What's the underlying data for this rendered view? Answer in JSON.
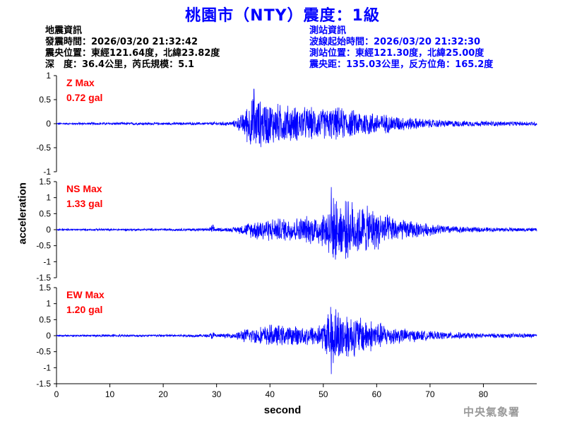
{
  "title": "桃園市（NTY）震度：1級",
  "quake_info": {
    "heading": "地震資訊",
    "origin_time": "發震時間：2026/03/20 21:32:42",
    "epicenter": "震央位置：東經121.64度，北緯23.82度",
    "depth_magnitude": "深　度：36.4公里，芮氏規模：5.1"
  },
  "station_info": {
    "heading": "測站資訊",
    "wave_start": "波線起始時間：2026/03/20 21:32:30",
    "station_location": "測站位置：東經121.30度，北緯25.00度",
    "distance_azimuth": "震央距：135.03公里，反方位角：165.2度"
  },
  "agency": "中央氣象署",
  "colors": {
    "trace": "#0000ff",
    "max_label": "#ff0000",
    "title": "#0000ff",
    "station_info": "#0000ff",
    "agency": "#999999"
  },
  "chart_data": {
    "type": "line",
    "xlabel": "second",
    "ylabel": "acceleration",
    "xlim": [
      0,
      90
    ],
    "xticks": [
      0,
      10,
      20,
      30,
      40,
      50,
      60,
      70,
      80
    ],
    "grid": false,
    "panels": [
      {
        "component": "Z",
        "label": "Z Max",
        "max_text": "0.72 gal",
        "max_value": 0.72,
        "ylim": [
          -1,
          1
        ],
        "yticks": [
          1,
          0.5,
          0,
          -0.5,
          -1
        ],
        "ytick_labels": [
          "1",
          "0.5",
          "0",
          "-0.5",
          "-1"
        ],
        "envelope": {
          "t": [
            0,
            5,
            10,
            20,
            28.5,
            29.5,
            33,
            35,
            36,
            37,
            38,
            40,
            42,
            45,
            50,
            53,
            55,
            58,
            60,
            65,
            70,
            75,
            80,
            85,
            90
          ],
          "amp": [
            0.02,
            0.025,
            0.03,
            0.03,
            0.03,
            0.04,
            0.05,
            0.25,
            0.5,
            0.62,
            0.55,
            0.5,
            0.45,
            0.4,
            0.35,
            0.38,
            0.32,
            0.3,
            0.25,
            0.16,
            0.1,
            0.07,
            0.06,
            0.05,
            0.05
          ]
        }
      },
      {
        "component": "NS",
        "label": "NS Max",
        "max_text": "1.33 gal",
        "max_value": 1.33,
        "ylim": [
          -1.5,
          1.5
        ],
        "yticks": [
          1.5,
          1,
          0.5,
          0,
          -0.5,
          -1,
          -1.5
        ],
        "ytick_labels": [
          "1.5",
          "1",
          "0.5",
          "0",
          "-0.5",
          "-1",
          "-1.5"
        ],
        "envelope": {
          "t": [
            0,
            10,
            20,
            28.5,
            29.2,
            30,
            33,
            35,
            38,
            42,
            45,
            48,
            50,
            51.5,
            53,
            55,
            57,
            60,
            62,
            65,
            70,
            75,
            80,
            90
          ],
          "amp": [
            0.03,
            0.035,
            0.04,
            0.05,
            0.18,
            0.06,
            0.07,
            0.18,
            0.38,
            0.4,
            0.42,
            0.5,
            0.6,
            1.1,
            0.95,
            1.0,
            0.85,
            0.7,
            0.5,
            0.35,
            0.2,
            0.12,
            0.08,
            0.06
          ]
        }
      },
      {
        "component": "EW",
        "label": "EW Max",
        "max_text": "1.20 gal",
        "max_value": 1.2,
        "ylim": [
          -1.5,
          1.5
        ],
        "yticks": [
          1.5,
          1,
          0.5,
          0,
          -0.5,
          -1,
          -1.5
        ],
        "ytick_labels": [
          "1.5",
          "1",
          "0.5",
          "0",
          "-0.5",
          "-1",
          "-1.5"
        ],
        "envelope": {
          "t": [
            0,
            10,
            20,
            28.5,
            29.2,
            30,
            33,
            35,
            38,
            40,
            44,
            48,
            50,
            51.5,
            53,
            55,
            57,
            60,
            62,
            65,
            70,
            75,
            80,
            88,
            90
          ],
          "amp": [
            0.03,
            0.04,
            0.04,
            0.05,
            0.15,
            0.06,
            0.08,
            0.22,
            0.3,
            0.38,
            0.32,
            0.35,
            0.45,
            1.05,
            0.95,
            0.75,
            0.65,
            0.5,
            0.35,
            0.25,
            0.15,
            0.12,
            0.08,
            0.08,
            0.06
          ]
        }
      }
    ]
  }
}
